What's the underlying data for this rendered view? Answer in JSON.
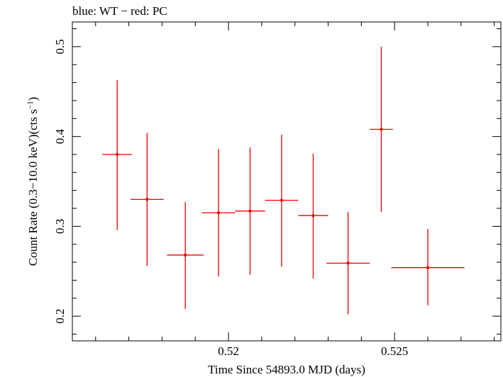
{
  "chart_data": {
    "type": "scatter",
    "title": "blue: WT − red: PC",
    "xlabel": "Time Since 54893.0 MJD (days)",
    "ylabel_main": "Count Rate (0.3−10.0 keV)(cts s",
    "ylabel_sup": "−1",
    "ylabel_close": ")",
    "xlim": [
      0.5153,
      0.5282
    ],
    "ylim": [
      0.1725,
      0.5275
    ],
    "x_ticks": [
      0.52,
      0.525
    ],
    "x_tick_labels": [
      "0.52",
      "0.525"
    ],
    "y_ticks": [
      0.2,
      0.3,
      0.4,
      0.5
    ],
    "y_tick_labels": [
      "0.2",
      "0.3",
      "0.4",
      "0.5"
    ],
    "grid": false,
    "color": "#ee0000",
    "series": [
      {
        "points": [
          {
            "x": 0.51665,
            "xerr": 0.00045,
            "y": 0.38,
            "yerr_lo": 0.084,
            "yerr_hi": 0.083
          },
          {
            "x": 0.51755,
            "xerr": 0.0005,
            "y": 0.33,
            "yerr_lo": 0.074,
            "yerr_hi": 0.074
          },
          {
            "x": 0.5187,
            "xerr": 0.00055,
            "y": 0.268,
            "yerr_lo": 0.06,
            "yerr_hi": 0.059
          },
          {
            "x": 0.5197,
            "xerr": 0.0005,
            "y": 0.315,
            "yerr_lo": 0.071,
            "yerr_hi": 0.071
          },
          {
            "x": 0.52065,
            "xerr": 0.00045,
            "y": 0.317,
            "yerr_lo": 0.071,
            "yerr_hi": 0.071
          },
          {
            "x": 0.5216,
            "xerr": 0.0005,
            "y": 0.329,
            "yerr_lo": 0.074,
            "yerr_hi": 0.073
          },
          {
            "x": 0.52255,
            "xerr": 0.00045,
            "y": 0.312,
            "yerr_lo": 0.07,
            "yerr_hi": 0.069
          },
          {
            "x": 0.5236,
            "xerr": 0.00065,
            "y": 0.259,
            "yerr_lo": 0.057,
            "yerr_hi": 0.057
          },
          {
            "x": 0.5246,
            "xerr": 0.00035,
            "y": 0.408,
            "yerr_lo": 0.092,
            "yerr_hi": 0.092
          },
          {
            "x": 0.526,
            "xerr": 0.0011,
            "y": 0.254,
            "yerr_lo": 0.042,
            "yerr_hi": 0.043
          }
        ]
      }
    ]
  }
}
